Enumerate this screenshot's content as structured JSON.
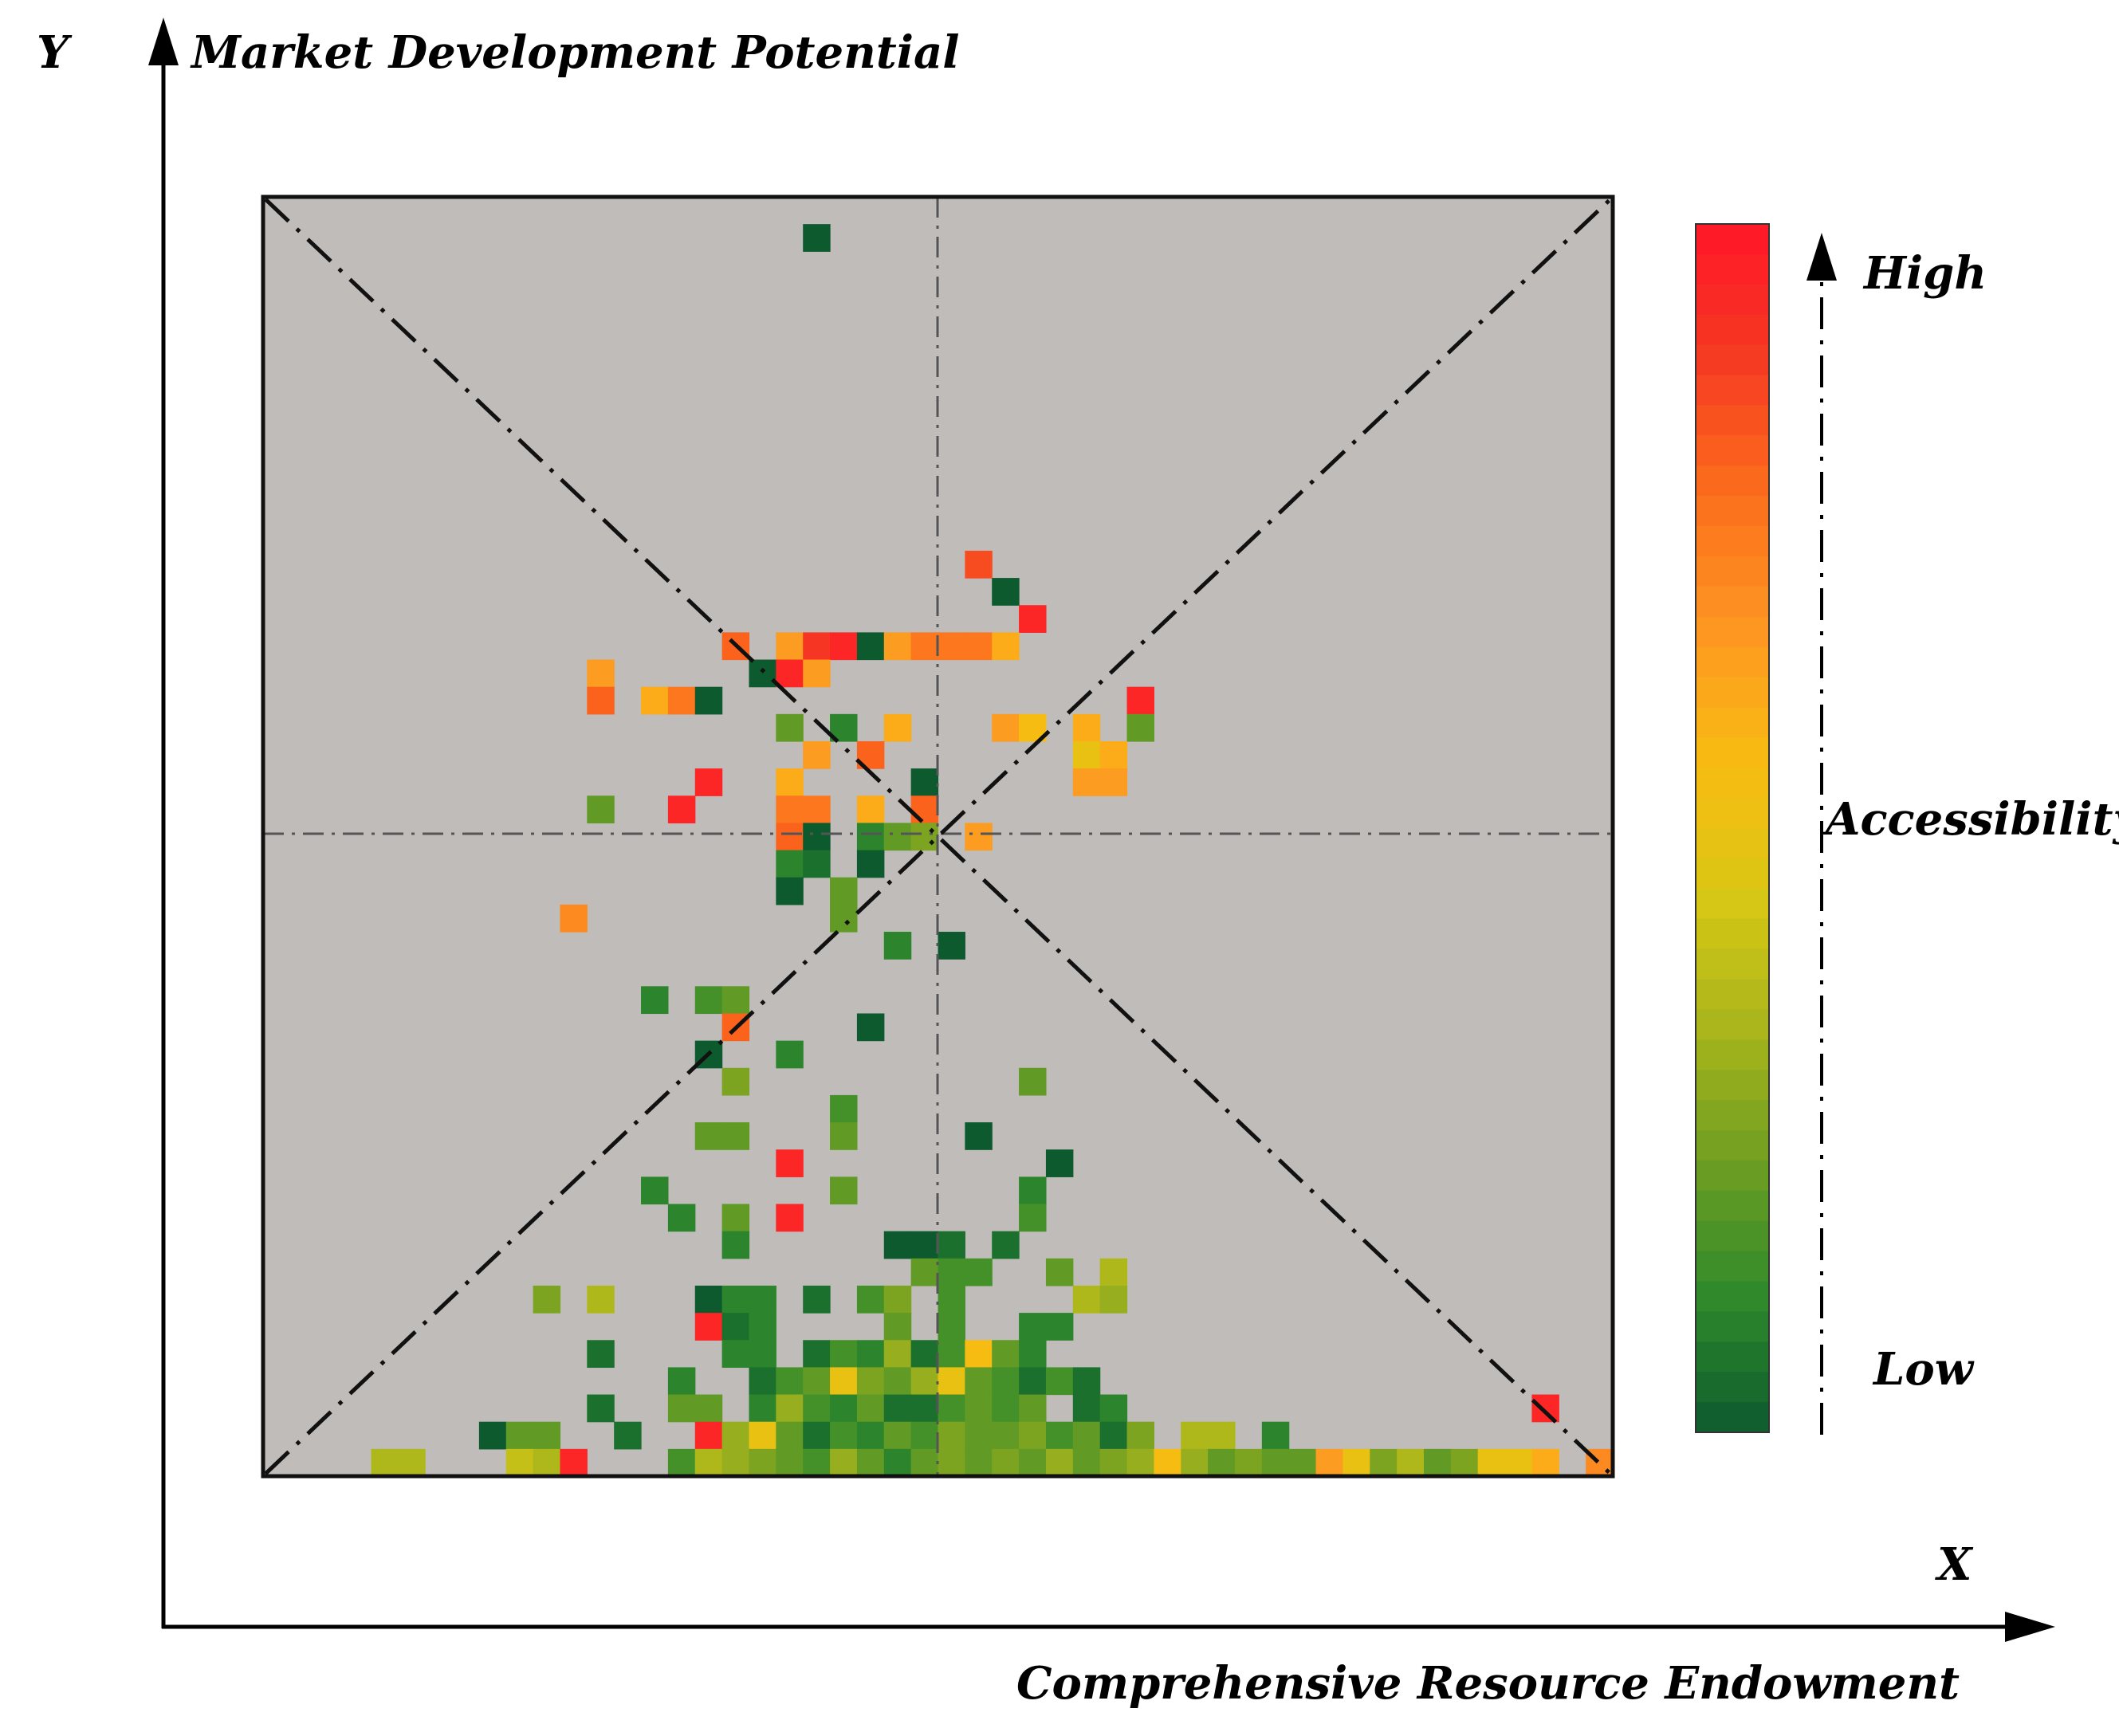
{
  "chart_data": {
    "type": "heatmap",
    "title": "",
    "xlabel": "Comprehensive Resource Endowment",
    "ylabel": "Market Development Potential",
    "x_axis_letter": "X",
    "y_axis_letter": "Y",
    "grid": {
      "cols": 50,
      "rows": 47
    },
    "legend": {
      "title": "Accessibility",
      "high_label": "High",
      "low_label": "Low",
      "placement": "right",
      "scale_min": 0,
      "scale_max": 1
    },
    "colors": {
      "background": "#bfbcba",
      "ramp": [
        "#0d5a2e",
        "#2f8a2c",
        "#6e9e22",
        "#a8b51c",
        "#d9c714",
        "#f9bb12",
        "#fd9622",
        "#fc6d1c",
        "#f53a22",
        "#ff1628"
      ]
    },
    "cells": [
      [
        20,
        1,
        0.0
      ],
      [
        26,
        13,
        0.85
      ],
      [
        27,
        14,
        0.0
      ],
      [
        28,
        15,
        0.95
      ],
      [
        17,
        16,
        0.8
      ],
      [
        19,
        16,
        0.65
      ],
      [
        20,
        16,
        0.9
      ],
      [
        21,
        16,
        0.95
      ],
      [
        22,
        16,
        0.0
      ],
      [
        23,
        16,
        0.65
      ],
      [
        24,
        16,
        0.75
      ],
      [
        25,
        16,
        0.75
      ],
      [
        26,
        16,
        0.75
      ],
      [
        27,
        16,
        0.6
      ],
      [
        12,
        17,
        0.65
      ],
      [
        18,
        17,
        0.0
      ],
      [
        19,
        17,
        0.95
      ],
      [
        20,
        17,
        0.65
      ],
      [
        12,
        18,
        0.8
      ],
      [
        14,
        18,
        0.6
      ],
      [
        15,
        18,
        0.75
      ],
      [
        16,
        18,
        0.0
      ],
      [
        32,
        18,
        0.95
      ],
      [
        19,
        19,
        0.2
      ],
      [
        21,
        19,
        0.1
      ],
      [
        23,
        19,
        0.6
      ],
      [
        27,
        19,
        0.65
      ],
      [
        28,
        19,
        0.55
      ],
      [
        30,
        19,
        0.6
      ],
      [
        32,
        19,
        0.2
      ],
      [
        20,
        20,
        0.65
      ],
      [
        22,
        20,
        0.8
      ],
      [
        30,
        20,
        0.5
      ],
      [
        31,
        20,
        0.6
      ],
      [
        16,
        21,
        0.95
      ],
      [
        19,
        21,
        0.6
      ],
      [
        24,
        21,
        0.0
      ],
      [
        30,
        21,
        0.65
      ],
      [
        31,
        21,
        0.65
      ],
      [
        12,
        22,
        0.2
      ],
      [
        15,
        22,
        0.95
      ],
      [
        19,
        22,
        0.75
      ],
      [
        20,
        22,
        0.75
      ],
      [
        22,
        22,
        0.6
      ],
      [
        24,
        22,
        0.8
      ],
      [
        19,
        23,
        0.8
      ],
      [
        20,
        23,
        0.0
      ],
      [
        22,
        23,
        0.1
      ],
      [
        23,
        23,
        0.2
      ],
      [
        24,
        23,
        0.25
      ],
      [
        26,
        23,
        0.65
      ],
      [
        19,
        24,
        0.1
      ],
      [
        20,
        24,
        0.05
      ],
      [
        22,
        24,
        0.0
      ],
      [
        19,
        25,
        0.0
      ],
      [
        21,
        25,
        0.2
      ],
      [
        11,
        26,
        0.7
      ],
      [
        21,
        26,
        0.2
      ],
      [
        23,
        27,
        0.1
      ],
      [
        25,
        27,
        0.0
      ],
      [
        14,
        29,
        0.1
      ],
      [
        16,
        29,
        0.15
      ],
      [
        17,
        29,
        0.2
      ],
      [
        17,
        30,
        0.8
      ],
      [
        22,
        30,
        0.0
      ],
      [
        16,
        31,
        0.0
      ],
      [
        19,
        31,
        0.1
      ],
      [
        17,
        32,
        0.25
      ],
      [
        28,
        32,
        0.2
      ],
      [
        21,
        33,
        0.15
      ],
      [
        16,
        34,
        0.2
      ],
      [
        17,
        34,
        0.2
      ],
      [
        21,
        34,
        0.2
      ],
      [
        26,
        34,
        0.0
      ],
      [
        19,
        35,
        0.95
      ],
      [
        29,
        35,
        0.0
      ],
      [
        14,
        36,
        0.1
      ],
      [
        21,
        36,
        0.2
      ],
      [
        28,
        36,
        0.1
      ],
      [
        15,
        37,
        0.1
      ],
      [
        17,
        37,
        0.2
      ],
      [
        19,
        37,
        0.95
      ],
      [
        28,
        37,
        0.15
      ],
      [
        17,
        38,
        0.1
      ],
      [
        23,
        38,
        0.0
      ],
      [
        24,
        38,
        0.0
      ],
      [
        25,
        38,
        0.05
      ],
      [
        27,
        38,
        0.05
      ],
      [
        24,
        39,
        0.2
      ],
      [
        25,
        39,
        0.15
      ],
      [
        26,
        39,
        0.15
      ],
      [
        29,
        39,
        0.2
      ],
      [
        31,
        39,
        0.35
      ],
      [
        10,
        40,
        0.25
      ],
      [
        12,
        40,
        0.35
      ],
      [
        16,
        40,
        0.0
      ],
      [
        17,
        40,
        0.1
      ],
      [
        18,
        40,
        0.1
      ],
      [
        20,
        40,
        0.05
      ],
      [
        22,
        40,
        0.15
      ],
      [
        23,
        40,
        0.25
      ],
      [
        25,
        40,
        0.15
      ],
      [
        30,
        40,
        0.35
      ],
      [
        31,
        40,
        0.3
      ],
      [
        16,
        41,
        0.95
      ],
      [
        17,
        41,
        0.05
      ],
      [
        18,
        41,
        0.1
      ],
      [
        23,
        41,
        0.2
      ],
      [
        25,
        41,
        0.15
      ],
      [
        28,
        41,
        0.1
      ],
      [
        29,
        41,
        0.1
      ],
      [
        12,
        42,
        0.05
      ],
      [
        17,
        42,
        0.1
      ],
      [
        18,
        42,
        0.1
      ],
      [
        20,
        42,
        0.05
      ],
      [
        21,
        42,
        0.15
      ],
      [
        22,
        42,
        0.1
      ],
      [
        23,
        42,
        0.3
      ],
      [
        24,
        42,
        0.05
      ],
      [
        25,
        42,
        0.15
      ],
      [
        26,
        42,
        0.55
      ],
      [
        27,
        42,
        0.2
      ],
      [
        28,
        42,
        0.1
      ],
      [
        15,
        43,
        0.1
      ],
      [
        18,
        43,
        0.05
      ],
      [
        19,
        43,
        0.15
      ],
      [
        20,
        43,
        0.2
      ],
      [
        21,
        43,
        0.5
      ],
      [
        22,
        43,
        0.25
      ],
      [
        23,
        43,
        0.2
      ],
      [
        24,
        43,
        0.3
      ],
      [
        25,
        43,
        0.5
      ],
      [
        26,
        43,
        0.2
      ],
      [
        27,
        43,
        0.15
      ],
      [
        28,
        43,
        0.05
      ],
      [
        29,
        43,
        0.15
      ],
      [
        30,
        43,
        0.05
      ],
      [
        12,
        44,
        0.05
      ],
      [
        15,
        44,
        0.2
      ],
      [
        16,
        44,
        0.2
      ],
      [
        18,
        44,
        0.1
      ],
      [
        19,
        44,
        0.3
      ],
      [
        20,
        44,
        0.15
      ],
      [
        21,
        44,
        0.1
      ],
      [
        22,
        44,
        0.2
      ],
      [
        23,
        44,
        0.05
      ],
      [
        24,
        44,
        0.05
      ],
      [
        25,
        44,
        0.15
      ],
      [
        26,
        44,
        0.2
      ],
      [
        27,
        44,
        0.15
      ],
      [
        28,
        44,
        0.2
      ],
      [
        30,
        44,
        0.05
      ],
      [
        31,
        44,
        0.1
      ],
      [
        47,
        44,
        0.95
      ],
      [
        8,
        45,
        0.0
      ],
      [
        9,
        45,
        0.2
      ],
      [
        10,
        45,
        0.2
      ],
      [
        13,
        45,
        0.05
      ],
      [
        16,
        45,
        0.95
      ],
      [
        17,
        45,
        0.3
      ],
      [
        18,
        45,
        0.5
      ],
      [
        19,
        45,
        0.2
      ],
      [
        20,
        45,
        0.05
      ],
      [
        21,
        45,
        0.15
      ],
      [
        22,
        45,
        0.1
      ],
      [
        23,
        45,
        0.2
      ],
      [
        24,
        45,
        0.15
      ],
      [
        25,
        45,
        0.25
      ],
      [
        26,
        45,
        0.2
      ],
      [
        27,
        45,
        0.2
      ],
      [
        28,
        45,
        0.25
      ],
      [
        29,
        45,
        0.15
      ],
      [
        30,
        45,
        0.2
      ],
      [
        31,
        45,
        0.05
      ],
      [
        32,
        45,
        0.25
      ],
      [
        34,
        45,
        0.35
      ],
      [
        35,
        45,
        0.35
      ],
      [
        37,
        45,
        0.1
      ],
      [
        4,
        46,
        0.35
      ],
      [
        5,
        46,
        0.35
      ],
      [
        9,
        46,
        0.4
      ],
      [
        10,
        46,
        0.35
      ],
      [
        11,
        46,
        0.95
      ],
      [
        15,
        46,
        0.15
      ],
      [
        16,
        46,
        0.35
      ],
      [
        17,
        46,
        0.3
      ],
      [
        18,
        46,
        0.25
      ],
      [
        19,
        46,
        0.2
      ],
      [
        20,
        46,
        0.15
      ],
      [
        21,
        46,
        0.3
      ],
      [
        22,
        46,
        0.2
      ],
      [
        23,
        46,
        0.1
      ],
      [
        24,
        46,
        0.2
      ],
      [
        25,
        46,
        0.25
      ],
      [
        26,
        46,
        0.2
      ],
      [
        27,
        46,
        0.25
      ],
      [
        28,
        46,
        0.2
      ],
      [
        29,
        46,
        0.3
      ],
      [
        30,
        46,
        0.2
      ],
      [
        31,
        46,
        0.25
      ],
      [
        32,
        46,
        0.3
      ],
      [
        33,
        46,
        0.55
      ],
      [
        34,
        46,
        0.3
      ],
      [
        35,
        46,
        0.2
      ],
      [
        36,
        46,
        0.25
      ],
      [
        37,
        46,
        0.2
      ],
      [
        38,
        46,
        0.2
      ],
      [
        39,
        46,
        0.65
      ],
      [
        40,
        46,
        0.5
      ],
      [
        41,
        46,
        0.25
      ],
      [
        42,
        46,
        0.35
      ],
      [
        43,
        46,
        0.2
      ],
      [
        44,
        46,
        0.25
      ],
      [
        45,
        46,
        0.5
      ],
      [
        46,
        46,
        0.5
      ],
      [
        47,
        46,
        0.6
      ],
      [
        49,
        46,
        0.7
      ]
    ]
  }
}
